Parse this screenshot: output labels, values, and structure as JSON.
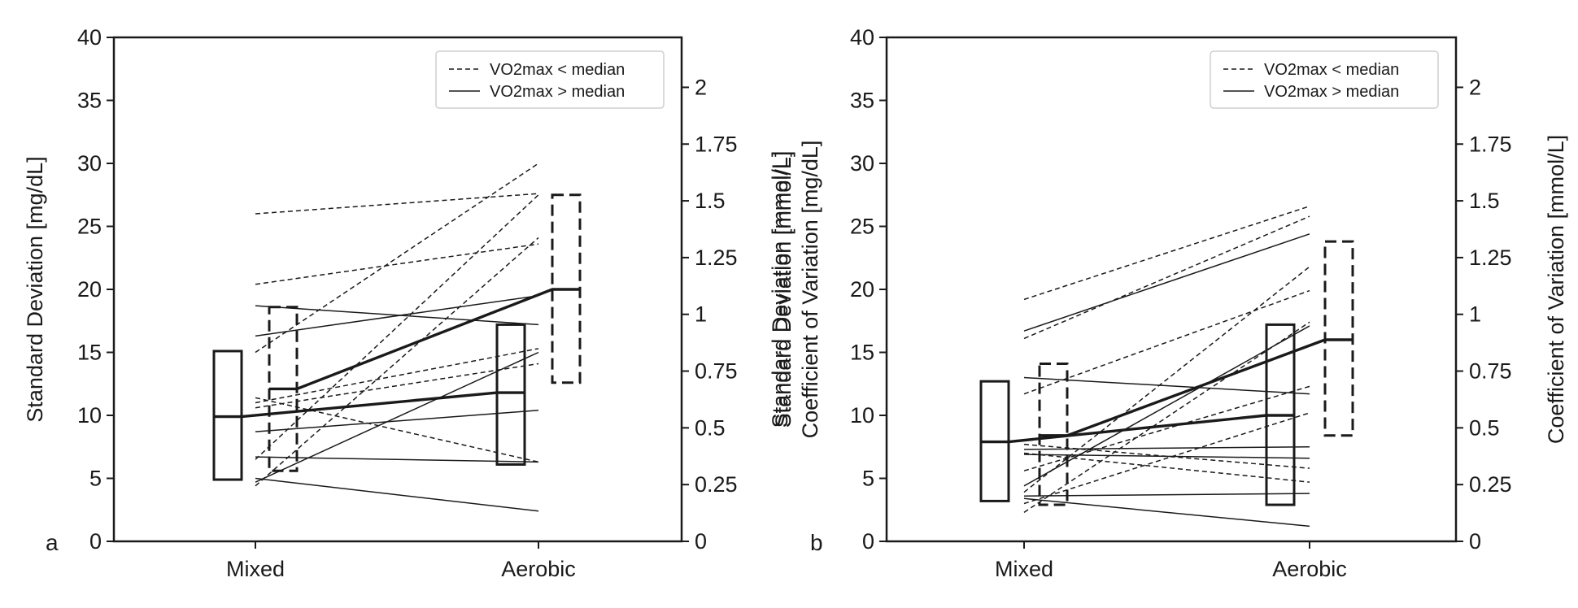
{
  "chart_data": [
    {
      "type": "line",
      "panel_label": "a",
      "categories": [
        "Mixed",
        "Aerobic"
      ],
      "ylabel_left": "Standard Deviation [mg/dL]",
      "ylabel_right": "Standard Deviation [mmol/L]",
      "ylim_left": [
        0,
        40
      ],
      "ylim_right": [
        0,
        2.22
      ],
      "yticks_left": [
        "0",
        "5",
        "10",
        "15",
        "20",
        "25",
        "30",
        "35",
        "40"
      ],
      "yticks_right": [
        "0",
        "0.25",
        "0.5",
        "0.75",
        "1",
        "1.25",
        "1.5",
        "1.75",
        "2"
      ],
      "legend": [
        {
          "label": "VO2max < median",
          "style": "dashed"
        },
        {
          "label": "VO2max > median",
          "style": "solid"
        }
      ],
      "boxes": [
        {
          "group": "VO2max > median",
          "category": "Mixed",
          "low": 4.9,
          "high": 15.1,
          "median": 9.9
        },
        {
          "group": "VO2max < median",
          "category": "Mixed",
          "low": 5.6,
          "high": 18.6,
          "median": 12.1
        },
        {
          "group": "VO2max > median",
          "category": "Aerobic",
          "low": 6.1,
          "high": 17.2,
          "median": 11.8
        },
        {
          "group": "VO2max < median",
          "category": "Aerobic",
          "low": 12.6,
          "high": 27.5,
          "median": 20.0
        }
      ],
      "series": [
        {
          "name": "VO2max > median",
          "style": "solid",
          "values": [
            18.7,
            17.2
          ]
        },
        {
          "name": "VO2max > median",
          "style": "solid",
          "values": [
            16.3,
            19.5
          ]
        },
        {
          "name": "VO2max > median",
          "style": "solid",
          "values": [
            8.7,
            10.4
          ]
        },
        {
          "name": "VO2max > median",
          "style": "solid",
          "values": [
            6.7,
            6.3
          ]
        },
        {
          "name": "VO2max > median",
          "style": "solid",
          "values": [
            5.0,
            2.4
          ]
        },
        {
          "name": "VO2max > median",
          "style": "solid",
          "values": [
            4.7,
            15.0
          ]
        },
        {
          "name": "VO2max < median",
          "style": "dashed",
          "values": [
            26.0,
            27.6
          ]
        },
        {
          "name": "VO2max < median",
          "style": "dashed",
          "values": [
            20.4,
            23.6
          ]
        },
        {
          "name": "VO2max < median",
          "style": "dashed",
          "values": [
            15.0,
            30.0
          ]
        },
        {
          "name": "VO2max < median",
          "style": "dashed",
          "values": [
            11.4,
            6.3
          ]
        },
        {
          "name": "VO2max < median",
          "style": "dashed",
          "values": [
            11.0,
            15.3
          ]
        },
        {
          "name": "VO2max < median",
          "style": "dashed",
          "values": [
            10.6,
            14.1
          ]
        },
        {
          "name": "VO2max < median",
          "style": "dashed",
          "values": [
            4.4,
            24.1
          ]
        },
        {
          "name": "VO2max < median",
          "style": "dashed",
          "values": [
            6.5,
            27.5
          ]
        }
      ],
      "median_lines": [
        {
          "name": "VO2max > median",
          "style": "solid",
          "values": [
            9.9,
            11.8
          ]
        },
        {
          "name": "VO2max < median",
          "style": "dashed",
          "values": [
            12.1,
            20.0
          ]
        }
      ]
    },
    {
      "type": "line",
      "panel_label": "b",
      "categories": [
        "Mixed",
        "Aerobic"
      ],
      "ylabel_left": "Coefficient of Variation [mg/dL]",
      "ylabel_right": "Coefficient of Variation [mmol/L]",
      "ylim_left": [
        0,
        40
      ],
      "ylim_right": [
        0,
        2.22
      ],
      "yticks_left": [
        "0",
        "5",
        "10",
        "15",
        "20",
        "25",
        "30",
        "35",
        "40"
      ],
      "yticks_right": [
        "0",
        "0.25",
        "0.5",
        "0.75",
        "1",
        "1.25",
        "1.5",
        "1.75",
        "2"
      ],
      "legend": [
        {
          "label": "VO2max < median",
          "style": "dashed"
        },
        {
          "label": "VO2max > median",
          "style": "solid"
        }
      ],
      "boxes": [
        {
          "group": "VO2max > median",
          "category": "Mixed",
          "low": 3.2,
          "high": 12.7,
          "median": 7.9
        },
        {
          "group": "VO2max < median",
          "category": "Mixed",
          "low": 2.9,
          "high": 14.1,
          "median": 8.4
        },
        {
          "group": "VO2max > median",
          "category": "Aerobic",
          "low": 2.9,
          "high": 17.2,
          "median": 10.0
        },
        {
          "group": "VO2max < median",
          "category": "Aerobic",
          "low": 8.4,
          "high": 23.8,
          "median": 16.0
        }
      ],
      "series": [
        {
          "name": "VO2max > median",
          "style": "solid",
          "values": [
            16.7,
            24.4
          ]
        },
        {
          "name": "VO2max > median",
          "style": "solid",
          "values": [
            13.0,
            11.7
          ]
        },
        {
          "name": "VO2max > median",
          "style": "solid",
          "values": [
            7.3,
            7.5
          ]
        },
        {
          "name": "VO2max > median",
          "style": "solid",
          "values": [
            6.9,
            6.6
          ]
        },
        {
          "name": "VO2max > median",
          "style": "solid",
          "values": [
            3.6,
            3.8
          ]
        },
        {
          "name": "VO2max > median",
          "style": "solid",
          "values": [
            3.4,
            1.2
          ]
        },
        {
          "name": "VO2max > median",
          "style": "solid",
          "values": [
            4.4,
            17.1
          ]
        },
        {
          "name": "VO2max < median",
          "style": "dashed",
          "values": [
            19.2,
            26.6
          ]
        },
        {
          "name": "VO2max < median",
          "style": "dashed",
          "values": [
            16.1,
            25.8
          ]
        },
        {
          "name": "VO2max < median",
          "style": "dashed",
          "values": [
            11.7,
            19.9
          ]
        },
        {
          "name": "VO2max < median",
          "style": "dashed",
          "values": [
            7.7,
            5.8
          ]
        },
        {
          "name": "VO2max < median",
          "style": "dashed",
          "values": [
            7.0,
            4.7
          ]
        },
        {
          "name": "VO2max < median",
          "style": "dashed",
          "values": [
            5.6,
            12.3
          ]
        },
        {
          "name": "VO2max < median",
          "style": "dashed",
          "values": [
            3.9,
            21.8
          ]
        },
        {
          "name": "VO2max < median",
          "style": "dashed",
          "values": [
            2.3,
            17.4
          ]
        },
        {
          "name": "VO2max < median",
          "style": "dashed",
          "values": [
            3.0,
            10.2
          ]
        }
      ],
      "median_lines": [
        {
          "name": "VO2max > median",
          "style": "solid",
          "values": [
            7.9,
            10.0
          ]
        },
        {
          "name": "VO2max < median",
          "style": "dashed",
          "values": [
            8.4,
            16.0
          ]
        }
      ]
    }
  ]
}
